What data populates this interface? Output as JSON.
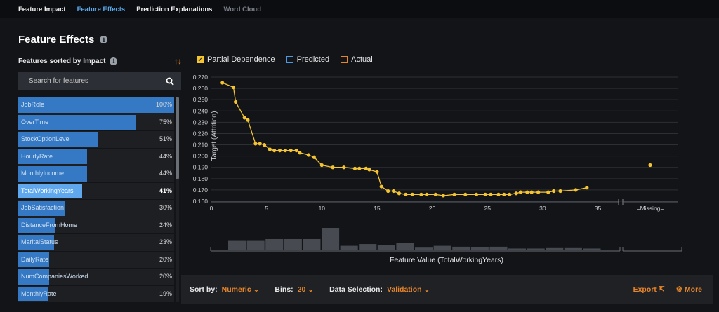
{
  "tabs": [
    {
      "label": "Feature Impact",
      "state": "normal"
    },
    {
      "label": "Feature Effects",
      "state": "active"
    },
    {
      "label": "Prediction Explanations",
      "state": "normal"
    },
    {
      "label": "Word Cloud",
      "state": "disabled"
    }
  ],
  "page": {
    "title": "Feature Effects",
    "info_icon": "info-icon"
  },
  "sidebar": {
    "heading": "Features sorted by Impact",
    "sort_icon": "sort-arrows-icon",
    "search_placeholder": "Search for features",
    "search_icon": "search-icon",
    "features": [
      {
        "name": "JobRole",
        "pct": "100%",
        "impact": 1.0
      },
      {
        "name": "OverTime",
        "pct": "75%",
        "impact": 0.75
      },
      {
        "name": "StockOptionLevel",
        "pct": "51%",
        "impact": 0.51
      },
      {
        "name": "HourlyRate",
        "pct": "44%",
        "impact": 0.44
      },
      {
        "name": "MonthlyIncome",
        "pct": "44%",
        "impact": 0.44
      },
      {
        "name": "TotalWorkingYears",
        "pct": "41%",
        "impact": 0.41,
        "selected": true
      },
      {
        "name": "JobSatisfaction",
        "pct": "30%",
        "impact": 0.3
      },
      {
        "name": "DistanceFromHome",
        "pct": "24%",
        "impact": 0.24
      },
      {
        "name": "MaritalStatus",
        "pct": "23%",
        "impact": 0.23
      },
      {
        "name": "DailyRate",
        "pct": "20%",
        "impact": 0.2
      },
      {
        "name": "NumCompaniesWorked",
        "pct": "20%",
        "impact": 0.2
      },
      {
        "name": "MonthlyRate",
        "pct": "19%",
        "impact": 0.19
      }
    ]
  },
  "legend": {
    "partial_dependence": "Partial Dependence",
    "partial_dependence_checked": true,
    "predicted": "Predicted",
    "predicted_checked": false,
    "actual": "Actual",
    "actual_checked": false
  },
  "chart_data": {
    "type": "line",
    "ylabel": "Target (Attrition)",
    "xlabel": "Feature Value (TotalWorkingYears)",
    "ylim": [
      0.16,
      0.27
    ],
    "xlim": [
      0,
      37
    ],
    "yticks": [
      "0.160",
      "0.170",
      "0.180",
      "0.190",
      "0.200",
      "0.210",
      "0.220",
      "0.230",
      "0.240",
      "0.250",
      "0.260",
      "0.270"
    ],
    "xticks": [
      0,
      5,
      10,
      15,
      20,
      25,
      30,
      35
    ],
    "missing_label": "=Missing=",
    "missing_value": 0.192,
    "series": [
      {
        "color": "#f5c431",
        "x": [
          1,
          2,
          2.2,
          3,
          3.3,
          4,
          4.4,
          4.8,
          5.3,
          5.7,
          6.2,
          6.7,
          7.2,
          7.7,
          8,
          8.8,
          9.3,
          10,
          11,
          12,
          13,
          13.4,
          14,
          14.3,
          15,
          15.4,
          16,
          16.5,
          17,
          17.6,
          18.2,
          19,
          19.5,
          20.3,
          21,
          22,
          23,
          24,
          24.8,
          25.3,
          26,
          26.5,
          27,
          27.6,
          28,
          28.6,
          29,
          29.6,
          30.5,
          31,
          31.6,
          33,
          34
        ],
        "values": [
          0.265,
          0.261,
          0.248,
          0.234,
          0.232,
          0.211,
          0.211,
          0.21,
          0.206,
          0.205,
          0.205,
          0.205,
          0.205,
          0.205,
          0.203,
          0.201,
          0.199,
          0.192,
          0.19,
          0.19,
          0.189,
          0.189,
          0.189,
          0.188,
          0.186,
          0.173,
          0.169,
          0.169,
          0.167,
          0.166,
          0.166,
          0.166,
          0.166,
          0.166,
          0.165,
          0.166,
          0.166,
          0.166,
          0.166,
          0.166,
          0.166,
          0.166,
          0.166,
          0.167,
          0.168,
          0.168,
          0.168,
          0.168,
          0.168,
          0.169,
          0.169,
          0.17,
          0.172
        ]
      }
    ],
    "histogram": [
      0.42,
      0.42,
      0.5,
      0.5,
      0.5,
      1.0,
      0.2,
      0.28,
      0.24,
      0.32,
      0.12,
      0.2,
      0.16,
      0.14,
      0.16,
      0.08,
      0.08,
      0.1,
      0.1,
      0.08
    ],
    "grid": true
  },
  "bottom": {
    "sort_label": "Sort by:",
    "sort_value": "Numeric",
    "bins_label": "Bins:",
    "bins_value": "20",
    "selection_label": "Data Selection:",
    "selection_value": "Validation",
    "export_label": "Export",
    "more_label": "More"
  }
}
